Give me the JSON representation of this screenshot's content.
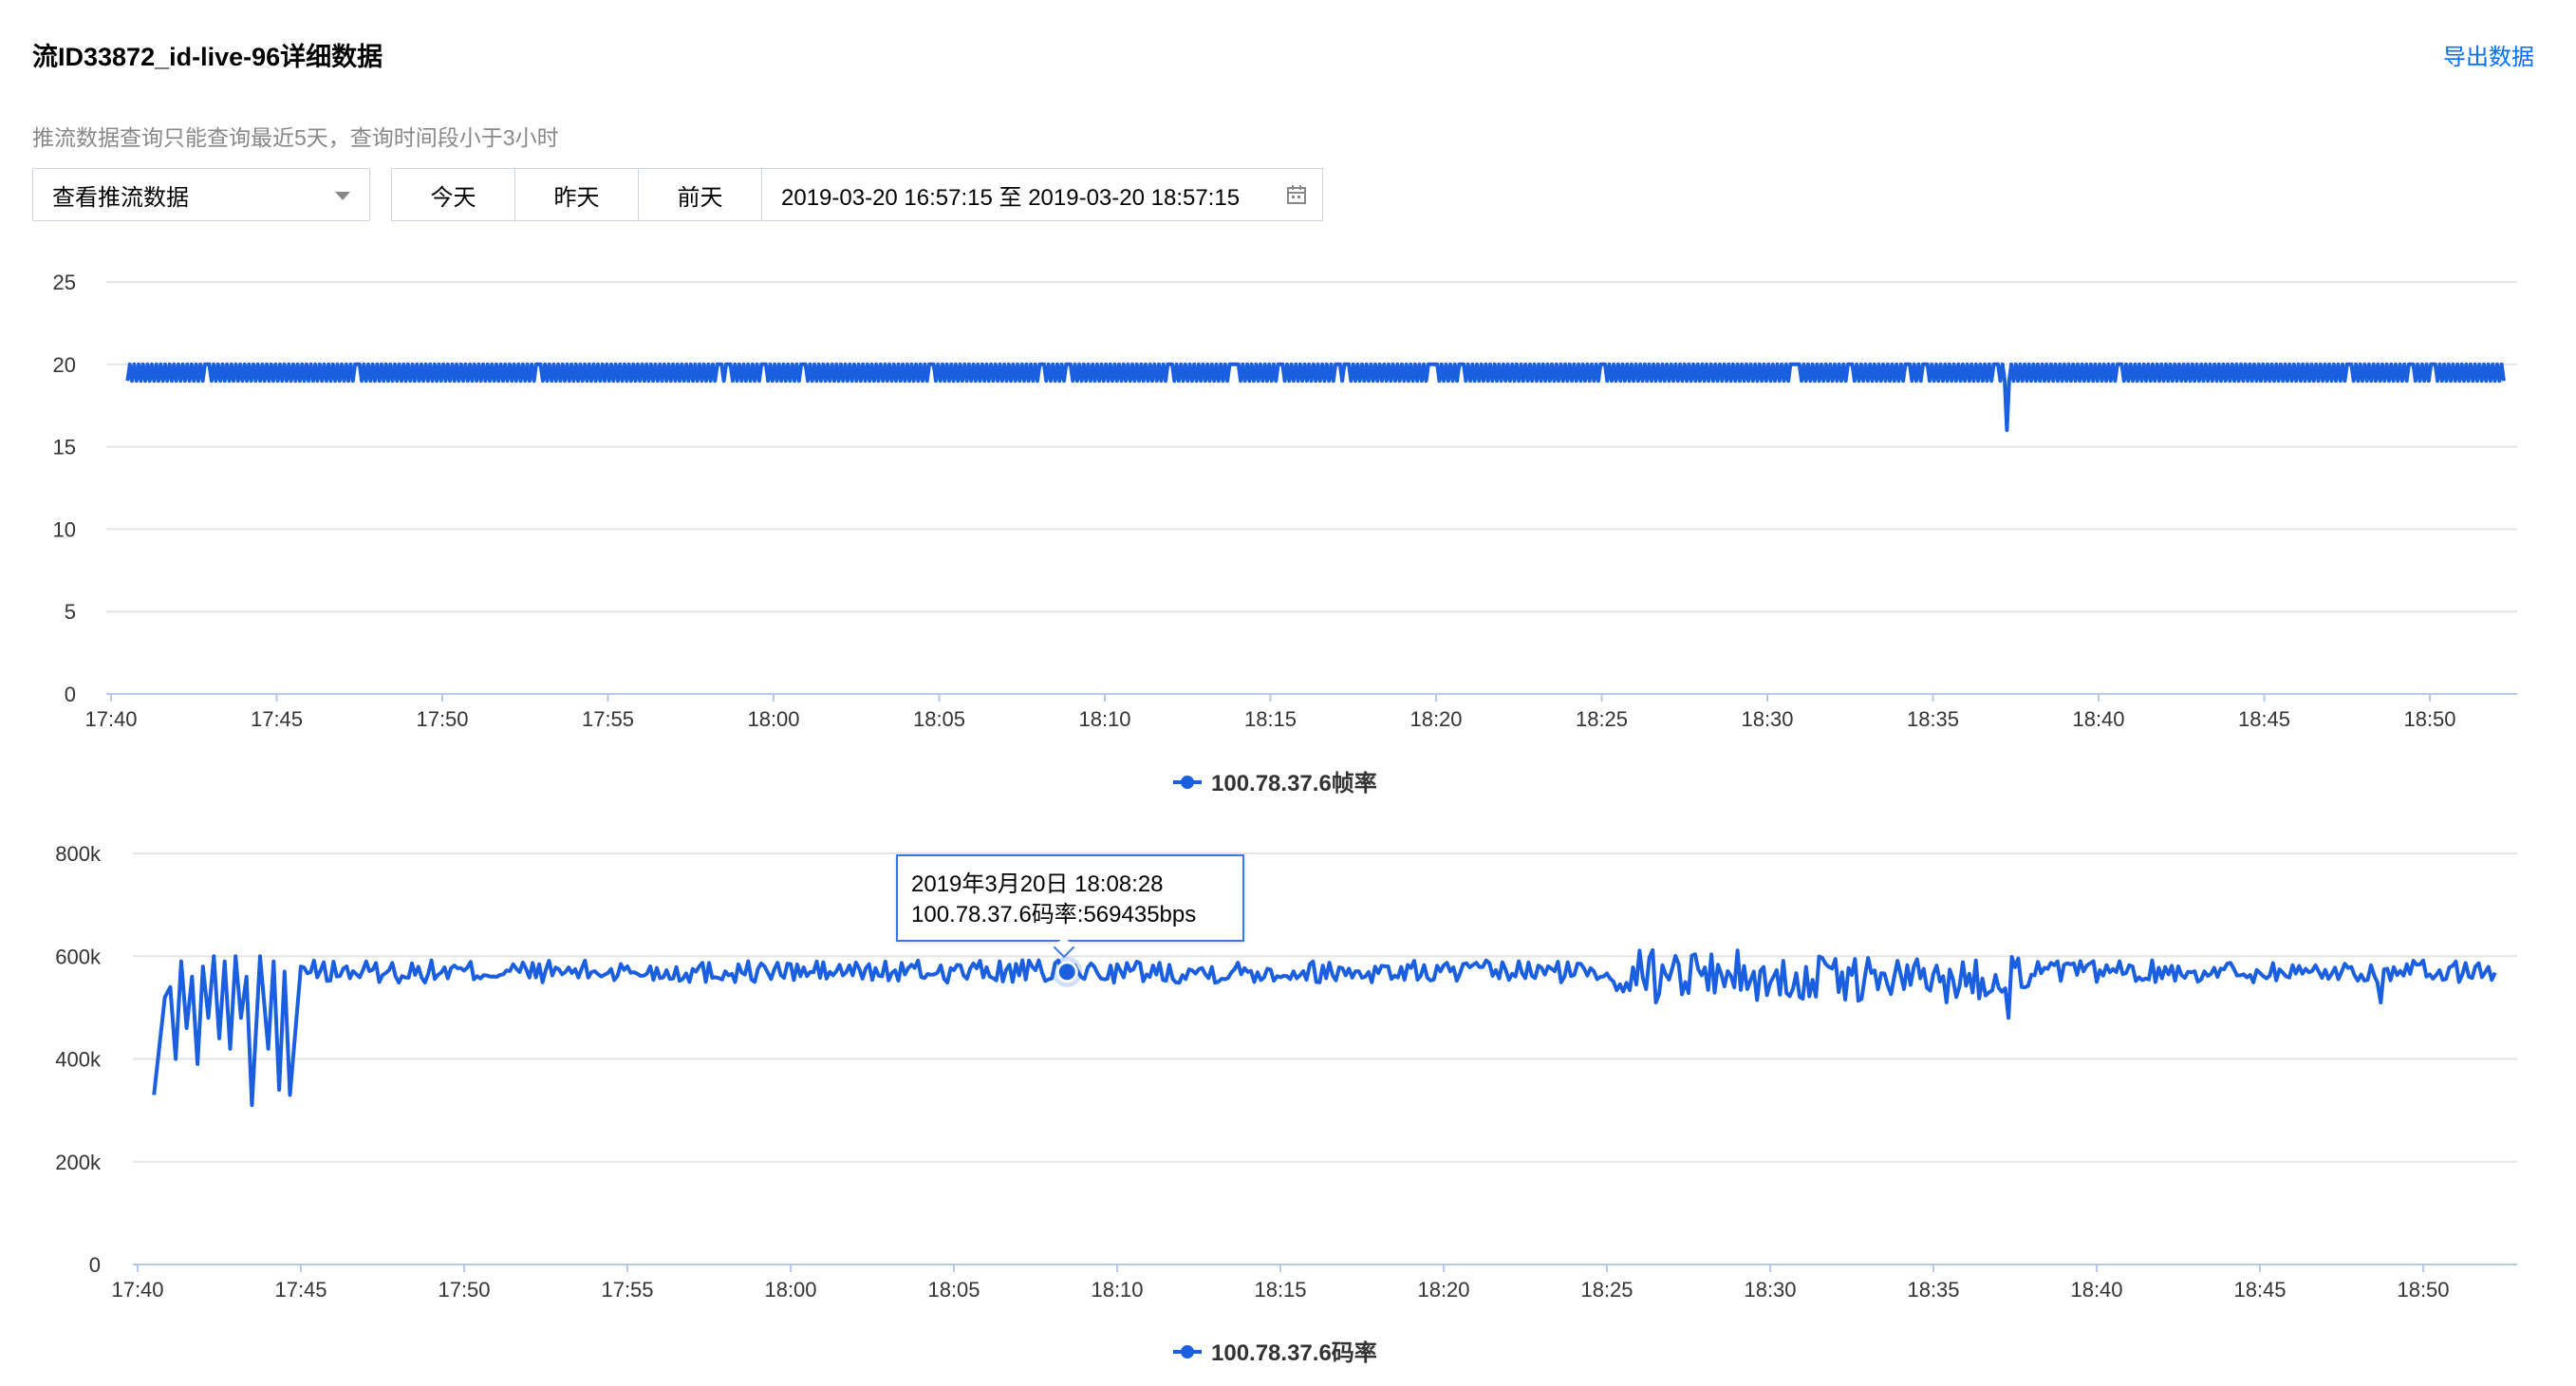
{
  "header": {
    "title": "流ID33872_id-live-96详细数据",
    "export_label": "导出数据",
    "hint": "推流数据查询只能查询最近5天，查询时间段小于3小时"
  },
  "controls": {
    "select_value": "查看推流数据",
    "today": "今天",
    "yesterday": "昨天",
    "day_before": "前天",
    "date_range": "2019-03-20 16:57:15 至 2019-03-20 18:57:15"
  },
  "colors": {
    "series": "#1a5fe0",
    "accent": "#006eff",
    "grid": "#e5e5e5",
    "axis": "#b8c8e8"
  },
  "tooltip": {
    "line1": "2019年3月20日 18:08:28",
    "line2": "100.78.37.6码率:569435bps"
  },
  "chart_data": [
    {
      "type": "line",
      "title": "",
      "xlabel": "",
      "ylabel": "",
      "ylim": [
        0,
        25
      ],
      "yticks": [
        "0",
        "5",
        "10",
        "15",
        "20",
        "25"
      ],
      "xticks": [
        "17:40",
        "17:45",
        "17:50",
        "17:55",
        "18:00",
        "18:05",
        "18:10",
        "18:15",
        "18:20",
        "18:25",
        "18:30",
        "18:35",
        "18:40",
        "18:45",
        "18:50"
      ],
      "legend": "bottom-center",
      "grid": true,
      "series": [
        {
          "name": "100.78.37.6帧率",
          "x_start": "17:40:30",
          "x_end": "18:52:15",
          "range": [
            19,
            20
          ],
          "dips": [
            {
              "x": "18:37:15",
              "y": 16
            }
          ]
        }
      ]
    },
    {
      "type": "line",
      "title": "",
      "xlabel": "",
      "ylabel": "",
      "ylim": [
        0,
        800000
      ],
      "yticks": [
        "0",
        "200k",
        "400k",
        "600k",
        "800k"
      ],
      "xticks": [
        "17:40",
        "17:45",
        "17:50",
        "17:55",
        "18:00",
        "18:05",
        "18:10",
        "18:15",
        "18:20",
        "18:25",
        "18:30",
        "18:35",
        "18:40",
        "18:45",
        "18:50"
      ],
      "legend": "bottom-center",
      "grid": true,
      "series": [
        {
          "name": "100.78.37.6码率",
          "x_start": "17:40:30",
          "x_end": "18:52:15",
          "baseline": 570000,
          "early": [
            [
              "17:40:30",
              330000
            ],
            [
              "17:40:50",
              520000
            ],
            [
              "17:41:00",
              540000
            ],
            [
              "17:41:10",
              400000
            ],
            [
              "17:41:20",
              590000
            ],
            [
              "17:41:30",
              460000
            ],
            [
              "17:41:40",
              560000
            ],
            [
              "17:41:50",
              390000
            ],
            [
              "17:42:00",
              580000
            ],
            [
              "17:42:10",
              480000
            ],
            [
              "17:42:20",
              600000
            ],
            [
              "17:42:30",
              440000
            ],
            [
              "17:42:40",
              590000
            ],
            [
              "17:42:50",
              420000
            ],
            [
              "17:43:00",
              600000
            ],
            [
              "17:43:10",
              480000
            ],
            [
              "17:43:20",
              560000
            ],
            [
              "17:43:30",
              310000
            ],
            [
              "17:43:45",
              600000
            ],
            [
              "17:44:00",
              420000
            ],
            [
              "17:44:10",
              590000
            ],
            [
              "17:44:20",
              340000
            ],
            [
              "17:44:30",
              570000
            ],
            [
              "17:44:40",
              330000
            ],
            [
              "17:45:00",
              580000
            ]
          ],
          "dips": [
            {
              "x": "18:26:30",
              "y": 510000
            },
            {
              "x": "18:30:20",
              "y": 525000
            },
            {
              "x": "18:37:20",
              "y": 480000
            },
            {
              "x": "18:48:40",
              "y": 510000
            }
          ],
          "highlight": {
            "x": "18:08:28",
            "y": 569435
          }
        }
      ]
    }
  ]
}
